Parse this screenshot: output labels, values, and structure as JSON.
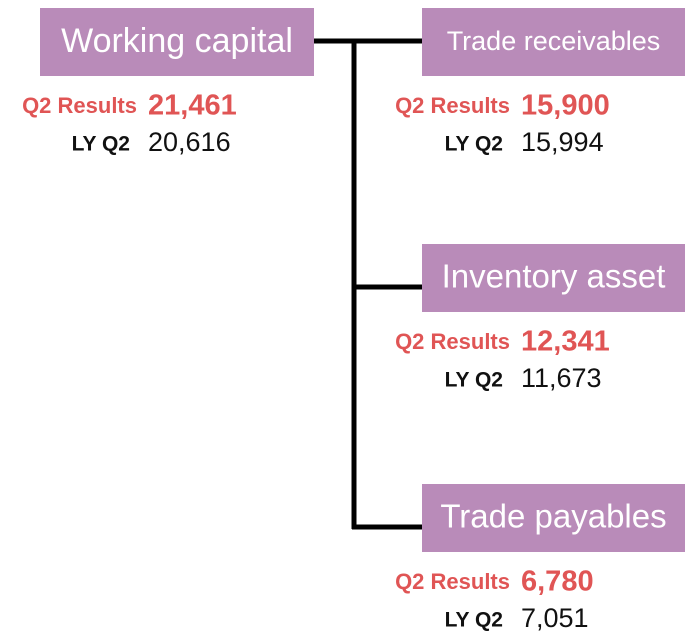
{
  "nodes": [
    {
      "label": "Working capital",
      "q2_label": "Q2 Results",
      "q2_value": "21,461",
      "ly_label": "LY Q2",
      "ly_value": "20,616"
    },
    {
      "label": "Trade receivables",
      "q2_label": "Q2 Results",
      "q2_value": "15,900",
      "ly_label": "LY Q2",
      "ly_value": "15,994"
    },
    {
      "label": "Inventory asset",
      "q2_label": "Q2 Results",
      "q2_value": "12,341",
      "ly_label": "LY Q2",
      "ly_value": "11,673"
    },
    {
      "label": "Trade payables",
      "q2_label": "Q2 Results",
      "q2_value": "6,780",
      "ly_label": "LY Q2",
      "ly_value": "7,051"
    }
  ]
}
